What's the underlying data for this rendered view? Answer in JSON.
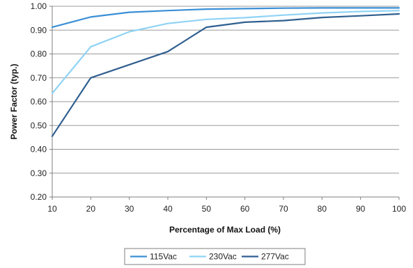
{
  "chart_data": {
    "type": "line",
    "xlabel": "Percentage of Max Load (%)",
    "ylabel": "Power Factor (typ.)",
    "x": [
      10,
      20,
      30,
      40,
      50,
      60,
      70,
      80,
      90,
      100
    ],
    "xlim": [
      10,
      100
    ],
    "ylim": [
      0.2,
      1.0
    ],
    "x_ticks": [
      "10",
      "20",
      "30",
      "40",
      "50",
      "60",
      "70",
      "80",
      "90",
      "100"
    ],
    "y_ticks": [
      "0.20",
      "0.30",
      "0.40",
      "0.50",
      "0.60",
      "0.70",
      "0.80",
      "0.90",
      "1.00"
    ],
    "grid": "horizontal",
    "legend_position": "bottom",
    "series": [
      {
        "name": "115Vac",
        "color": "#3a8fd6",
        "values": [
          0.912,
          0.955,
          0.975,
          0.982,
          0.988,
          0.99,
          0.992,
          0.993,
          0.993,
          0.993
        ]
      },
      {
        "name": "230Vac",
        "color": "#8fd3f5",
        "values": [
          0.635,
          0.83,
          0.893,
          0.928,
          0.945,
          0.952,
          0.963,
          0.972,
          0.978,
          0.982
        ]
      },
      {
        "name": "277Vac",
        "color": "#2f5f8f",
        "values": [
          0.455,
          0.7,
          0.755,
          0.81,
          0.912,
          0.933,
          0.94,
          0.953,
          0.96,
          0.968
        ]
      }
    ]
  }
}
